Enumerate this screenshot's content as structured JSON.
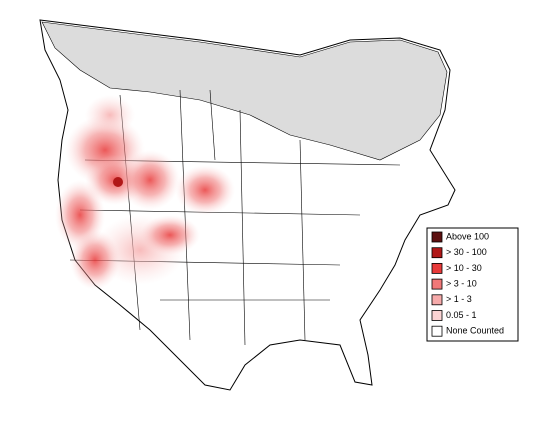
{
  "legend": {
    "items": [
      {
        "label": "Above 100",
        "color": "#5c1010"
      },
      {
        "label": "> 30 - 100",
        "color": "#b01818"
      },
      {
        "label": "> 10 - 30",
        "color": "#e83a3a"
      },
      {
        "label": "> 3 - 10",
        "color": "#f07878"
      },
      {
        "label": "> 1 - 3",
        "color": "#f6aaaa"
      },
      {
        "label": "0.05 - 1",
        "color": "#fbd4d4"
      },
      {
        "label": "None Counted",
        "color": "#ffffff"
      }
    ]
  }
}
